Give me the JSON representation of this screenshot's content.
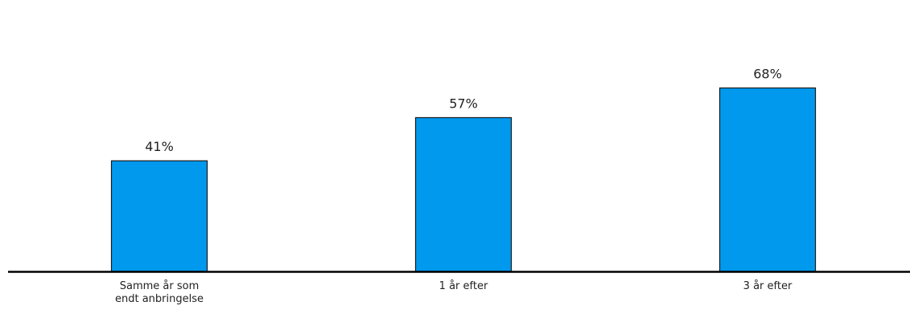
{
  "chart_data": {
    "type": "bar",
    "categories": [
      "Samme år som endt anbringelse",
      "1 år efter",
      "3 år efter"
    ],
    "category_lines": [
      [
        "Samme år som",
        "endt anbringelse"
      ],
      [
        "1 år efter"
      ],
      [
        "3 år efter"
      ]
    ],
    "values": [
      41,
      57,
      68
    ],
    "data_labels": [
      "41%",
      "57%",
      "68%"
    ],
    "ylim": [
      0,
      100
    ],
    "grid": false,
    "bar_color": "#0099EE",
    "bar_outline_color": "#1A1A1A",
    "axis_color": "#000000"
  }
}
